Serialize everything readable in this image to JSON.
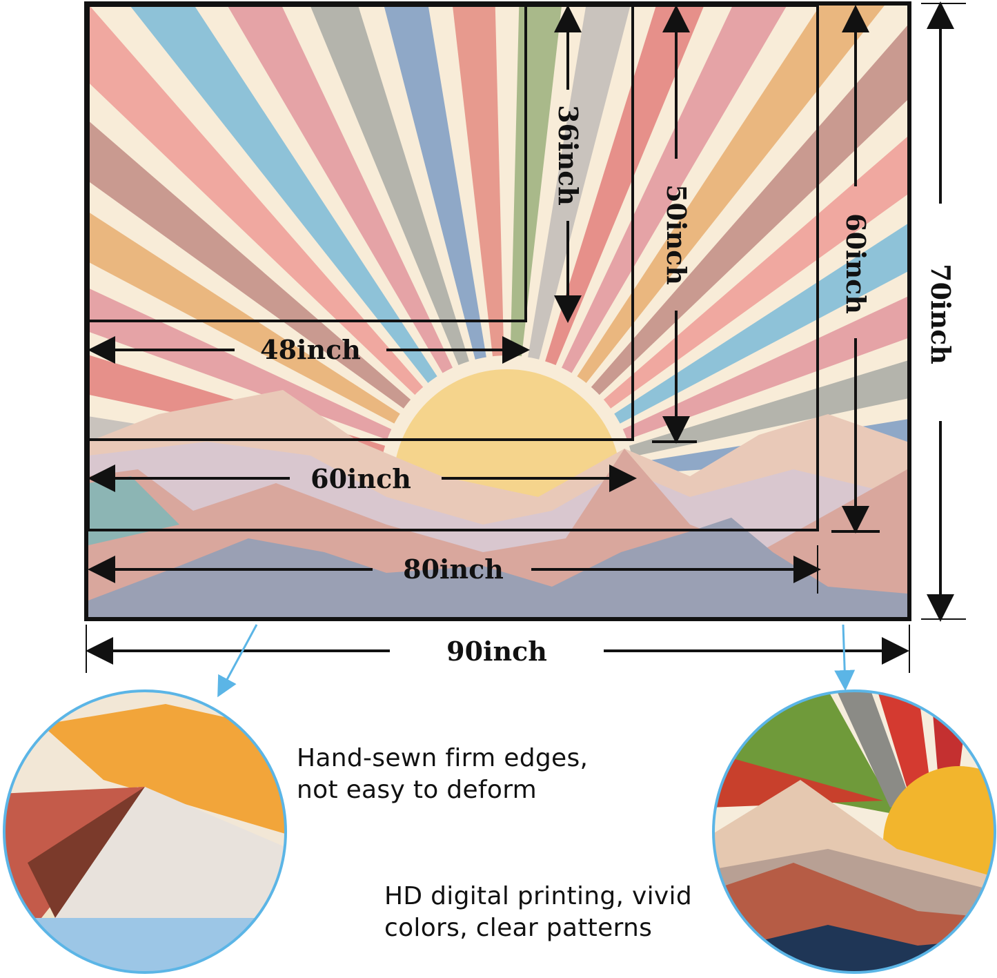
{
  "palette": {
    "rays": [
      "#a9b98a",
      "#c9c3bd",
      "#e6908a",
      "#e5a3a6",
      "#eab77f",
      "#c99a90",
      "#f0a8a0",
      "#8ec2d8",
      "#e5a3a6",
      "#b4b4ac",
      "#8fa8c7",
      "#e79a8e"
    ],
    "cream": "#f8ecd8",
    "sun": "#f5d48c",
    "arrow_blue": "#5bb5e6"
  },
  "dimensions": {
    "w48": "48inch",
    "h36": "36inch",
    "w60": "60inch",
    "h50": "50inch",
    "w80": "80inch",
    "h60": "60inch",
    "w90": "90inch",
    "h70": "70inch"
  },
  "features": [
    {
      "line1": "Hand-sewn firm edges,",
      "line2": "not easy to deform"
    },
    {
      "line1": "HD digital printing, vivid",
      "line2": "colors, clear patterns"
    }
  ]
}
